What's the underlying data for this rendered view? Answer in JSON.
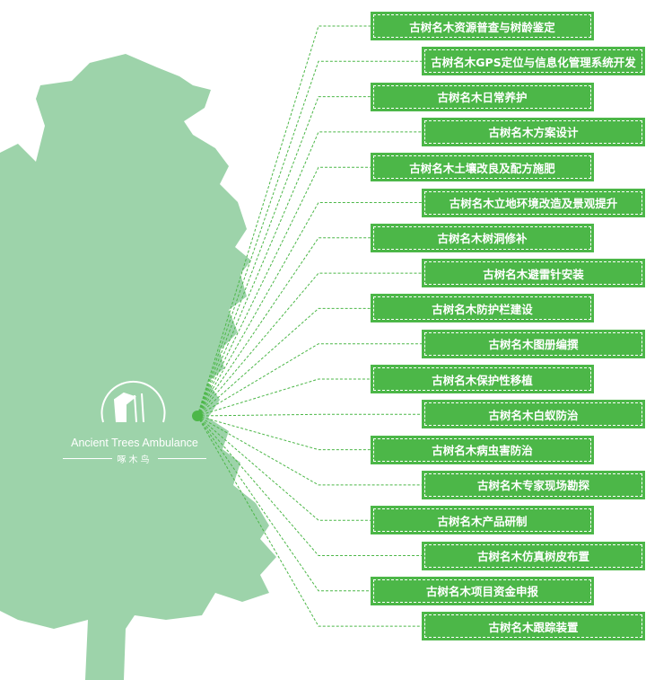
{
  "colors": {
    "box": "#4cb748",
    "tree": "#9dd3aa",
    "line": "#4cb748"
  },
  "logo": {
    "title": "Ancient Trees Ambulance",
    "subtitle": "啄木鸟"
  },
  "services": [
    "古树名木资源普查与树龄鉴定",
    "古树名木GPS定位与信息化管理系统开发",
    "古树名木日常养护",
    "古树名木方案设计",
    "古树名木土壤改良及配方施肥",
    "古树名木立地环境改造及景观提升",
    "古树名木树洞修补",
    "古树名木避雷针安装",
    "古树名木防护栏建设",
    "古树名木图册编撰",
    "古树名木保护性移植",
    "古树名木白蚁防治",
    "古树名木病虫害防治",
    "古树名木专家现场勘探",
    "古树名木产品研制",
    "古树名木仿真树皮布置",
    "古树名木项目资金申报",
    "古树名木跟踪装置"
  ]
}
